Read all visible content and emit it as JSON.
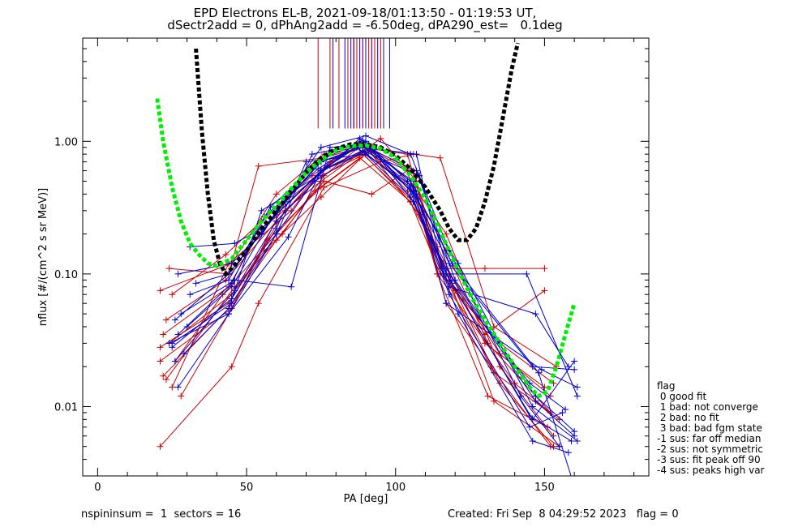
{
  "title_line1": "EPD Electrons EL-B, 2021-09-18/01:13:50 - 01:19:53 UT,",
  "title_line2": "dSectr2add = 0, dPhAng2add = -6.50deg, dPA290_est=   0.1deg",
  "footer_left": "nspininsum =  1  sectors = 16",
  "footer_right": "Created: Fri Sep  8 04:29:52 2023   flag = 0",
  "legend": {
    "title": "flag",
    "items": [
      " 0 good fit",
      " 1 bad: not converge",
      " 2 bad: no fit",
      " 3 bad: bad fgm state",
      "-1 sus: far off median",
      "-2 sus: not symmetric",
      "-3 sus: fit peak off 90",
      "-4 sus: peaks high var"
    ]
  },
  "colors": {
    "red": "#cc0000",
    "blue": "#0000cc",
    "black": "#000000",
    "green": "#00ee00"
  },
  "chart_data": {
    "type": "line",
    "xlabel": "PA [deg]",
    "ylabel": "nflux [#/(cm^2 s sr MeV)]",
    "xlim": [
      -5,
      185
    ],
    "ylim": [
      0.003,
      6
    ],
    "yscale": "log",
    "xticks": [
      0,
      50,
      100,
      150
    ],
    "yticks": [
      {
        "v": 0.01,
        "label": "0.01"
      },
      {
        "v": 0.1,
        "label": "0.10"
      },
      {
        "v": 1.0,
        "label": "1.00"
      }
    ],
    "peak_markers_x": {
      "red": [
        74,
        78,
        81,
        84,
        86,
        87,
        89,
        91,
        93,
        95
      ],
      "blue": [
        79,
        83,
        85,
        86,
        88,
        90,
        92,
        94,
        96,
        98
      ],
      "purple": [
        86,
        89,
        92
      ],
      "ymin": 1.25
    },
    "series": [
      {
        "color": "red",
        "x": [
          21,
          44,
          63,
          75,
          92,
          108,
          118,
          135,
          152
        ],
        "values": [
          0.028,
          0.06,
          0.3,
          0.55,
          0.85,
          0.55,
          0.1,
          0.025,
          0.012
        ]
      },
      {
        "color": "red",
        "x": [
          21,
          45,
          63,
          78,
          91,
          106,
          116,
          133,
          155
        ],
        "values": [
          0.022,
          0.055,
          0.35,
          0.65,
          0.9,
          0.6,
          0.1,
          0.018,
          0.008
        ]
      },
      {
        "color": "red",
        "x": [
          23,
          43,
          60,
          78,
          89,
          105,
          117,
          131,
          152
        ],
        "values": [
          0.045,
          0.09,
          0.25,
          0.7,
          0.95,
          0.5,
          0.15,
          0.03,
          0.009
        ]
      },
      {
        "color": "red",
        "x": [
          21,
          45,
          60,
          76,
          87,
          105,
          115,
          135,
          153
        ],
        "values": [
          0.075,
          0.12,
          0.4,
          0.8,
          0.9,
          0.35,
          0.1,
          0.03,
          0.015
        ]
      },
      {
        "color": "red",
        "x": [
          24,
          44,
          54,
          76,
          88,
          104,
          115,
          130,
          150
        ],
        "values": [
          0.11,
          0.1,
          0.65,
          0.75,
          0.9,
          0.8,
          0.11,
          0.11,
          0.11
        ]
      },
      {
        "color": "red",
        "x": [
          22,
          44,
          55,
          75,
          95,
          107,
          114,
          140,
          152
        ],
        "values": [
          0.035,
          0.08,
          0.22,
          0.5,
          1.05,
          0.5,
          0.1,
          0.015,
          0.009
        ]
      },
      {
        "color": "red",
        "x": [
          21,
          45,
          54,
          76,
          95,
          106,
          115,
          133,
          154
        ],
        "values": [
          0.005,
          0.02,
          0.06,
          0.45,
          0.7,
          0.8,
          0.75,
          0.04,
          0.02
        ]
      },
      {
        "color": "red",
        "x": [
          26,
          42,
          60,
          76,
          92,
          104,
          114,
          131,
          151
        ],
        "values": [
          0.022,
          0.07,
          0.2,
          0.5,
          0.4,
          0.6,
          0.1,
          0.012,
          0.007
        ]
      },
      {
        "color": "red",
        "x": [
          25,
          44,
          65,
          75,
          89,
          106,
          116,
          130,
          150
        ],
        "values": [
          0.014,
          0.12,
          0.3,
          0.6,
          0.8,
          0.35,
          0.1,
          0.035,
          0.075
        ]
      },
      {
        "color": "red",
        "x": [
          23,
          46,
          62,
          76,
          89,
          105,
          117,
          135,
          153
        ],
        "values": [
          0.016,
          0.08,
          0.2,
          0.55,
          0.95,
          0.5,
          0.2,
          0.02,
          0.006
        ]
      },
      {
        "color": "red",
        "x": [
          22,
          44,
          60,
          73,
          88,
          105,
          116,
          133,
          155
        ],
        "values": [
          0.017,
          0.055,
          0.18,
          0.42,
          0.75,
          0.35,
          0.12,
          0.011,
          0.005
        ]
      },
      {
        "color": "red",
        "x": [
          24,
          45,
          56,
          75,
          91,
          108,
          120,
          135,
          153
        ],
        "values": [
          0.03,
          0.07,
          0.15,
          0.38,
          0.85,
          0.28,
          0.075,
          0.015,
          0.005
        ]
      },
      {
        "color": "red",
        "x": [
          28,
          44,
          57,
          75,
          90,
          106,
          117,
          132,
          152
        ],
        "values": [
          0.012,
          0.05,
          0.18,
          0.45,
          0.8,
          0.45,
          0.06,
          0.02,
          0.005
        ]
      },
      {
        "color": "red",
        "x": [
          25,
          43,
          55,
          72,
          88,
          104,
          114,
          130,
          150
        ],
        "values": [
          0.07,
          0.14,
          0.25,
          0.55,
          1.0,
          0.42,
          0.16,
          0.03,
          0.014
        ]
      },
      {
        "color": "blue",
        "x": [
          27,
          45,
          55,
          75,
          90,
          105,
          118,
          142,
          155
        ],
        "values": [
          0.1,
          0.12,
          0.2,
          0.9,
          1.1,
          0.8,
          0.15,
          0.012,
          0.005
        ]
      },
      {
        "color": "blue",
        "x": [
          27,
          44,
          60,
          72,
          88,
          106,
          119,
          148,
          160
        ],
        "values": [
          0.014,
          0.05,
          0.2,
          0.8,
          0.95,
          0.45,
          0.12,
          0.018,
          0.0025
        ]
      },
      {
        "color": "blue",
        "x": [
          25,
          45,
          60,
          75,
          89,
          107,
          118,
          147,
          158
        ],
        "values": [
          0.03,
          0.06,
          0.2,
          0.6,
          0.85,
          0.4,
          0.08,
          0.05,
          0.02
        ]
      },
      {
        "color": "blue",
        "x": [
          28,
          46,
          65,
          78,
          91,
          106,
          121,
          146,
          161
        ],
        "values": [
          0.05,
          0.09,
          0.08,
          0.9,
          0.95,
          0.4,
          0.12,
          0.01,
          0.0055
        ]
      },
      {
        "color": "blue",
        "x": [
          26,
          44,
          63,
          75,
          89,
          107,
          116,
          144,
          161
        ],
        "values": [
          0.045,
          0.1,
          0.35,
          0.7,
          0.9,
          0.8,
          0.1,
          0.1,
          0.012
        ]
      },
      {
        "color": "blue",
        "x": [
          29,
          44,
          55,
          74,
          88,
          105,
          117,
          146,
          160
        ],
        "values": [
          0.025,
          0.055,
          0.3,
          0.55,
          1.05,
          0.5,
          0.1,
          0.008,
          0.022
        ]
      },
      {
        "color": "blue",
        "x": [
          31,
          46,
          55,
          75,
          92,
          106,
          118,
          145,
          157
        ],
        "values": [
          0.16,
          0.17,
          0.22,
          0.6,
          0.88,
          0.35,
          0.09,
          0.015,
          0.0095
        ]
      },
      {
        "color": "blue",
        "x": [
          30,
          45,
          60,
          76,
          90,
          104,
          118,
          146,
          160
        ],
        "values": [
          0.04,
          0.08,
          0.3,
          0.75,
          1.0,
          0.5,
          0.12,
          0.02,
          0.019
        ]
      },
      {
        "color": "blue",
        "x": [
          33,
          44,
          60,
          77,
          88,
          107,
          120,
          147,
          160
        ],
        "values": [
          0.085,
          0.1,
          0.28,
          0.65,
          0.95,
          0.6,
          0.09,
          0.012,
          0.0065
        ]
      },
      {
        "color": "blue",
        "x": [
          26,
          46,
          60,
          73,
          89,
          108,
          119,
          145,
          159
        ],
        "values": [
          0.022,
          0.075,
          0.25,
          0.5,
          0.85,
          0.55,
          0.085,
          0.0085,
          0.0055
        ]
      },
      {
        "color": "blue",
        "x": [
          25,
          45,
          60,
          70,
          90,
          105,
          117,
          147,
          160
        ],
        "values": [
          0.028,
          0.065,
          0.22,
          0.7,
          0.8,
          0.38,
          0.11,
          0.011,
          0.006
        ]
      },
      {
        "color": "blue",
        "x": [
          24,
          44,
          64,
          75,
          87,
          105,
          121,
          146,
          158
        ],
        "values": [
          0.03,
          0.05,
          0.19,
          0.6,
          0.9,
          0.45,
          0.05,
          0.0055,
          0.0045
        ]
      },
      {
        "color": "blue",
        "x": [
          31,
          44,
          58,
          75,
          89,
          106,
          117,
          149,
          161
        ],
        "values": [
          0.07,
          0.09,
          0.32,
          0.7,
          0.92,
          0.5,
          0.06,
          0.019,
          0.014
        ]
      },
      {
        "color": "blue",
        "x": [
          27,
          45,
          56,
          74,
          89,
          105,
          118,
          145,
          156
        ],
        "values": [
          0.035,
          0.085,
          0.27,
          0.62,
          1.02,
          0.42,
          0.07,
          0.007,
          0.009
        ]
      }
    ],
    "fits": [
      {
        "color": "black",
        "x": [
          33,
          35,
          37,
          39,
          41,
          43,
          45,
          50,
          55,
          60,
          65,
          70,
          75,
          80,
          85,
          90,
          95,
          100,
          105,
          110,
          115,
          118,
          121,
          124,
          127,
          130,
          133,
          136,
          139,
          141
        ],
        "values": [
          5.0,
          1.2,
          0.4,
          0.18,
          0.12,
          0.1,
          0.11,
          0.15,
          0.22,
          0.3,
          0.42,
          0.58,
          0.75,
          0.88,
          0.95,
          0.95,
          0.9,
          0.78,
          0.62,
          0.45,
          0.3,
          0.22,
          0.18,
          0.18,
          0.22,
          0.35,
          0.65,
          1.5,
          3.5,
          5.5
        ]
      },
      {
        "color": "green",
        "x": [
          20,
          22,
          25,
          28,
          31,
          34,
          37,
          40,
          45,
          50,
          55,
          60,
          65,
          70,
          75,
          80,
          85,
          90,
          95,
          100,
          105,
          110,
          115,
          120,
          125,
          130,
          135,
          140,
          145,
          148,
          151,
          154,
          157,
          160
        ],
        "values": [
          2.1,
          1.0,
          0.45,
          0.25,
          0.17,
          0.14,
          0.12,
          0.115,
          0.13,
          0.18,
          0.25,
          0.33,
          0.44,
          0.58,
          0.72,
          0.85,
          0.92,
          0.93,
          0.88,
          0.75,
          0.55,
          0.37,
          0.21,
          0.12,
          0.07,
          0.045,
          0.03,
          0.02,
          0.014,
          0.012,
          0.013,
          0.02,
          0.035,
          0.06
        ]
      }
    ]
  }
}
